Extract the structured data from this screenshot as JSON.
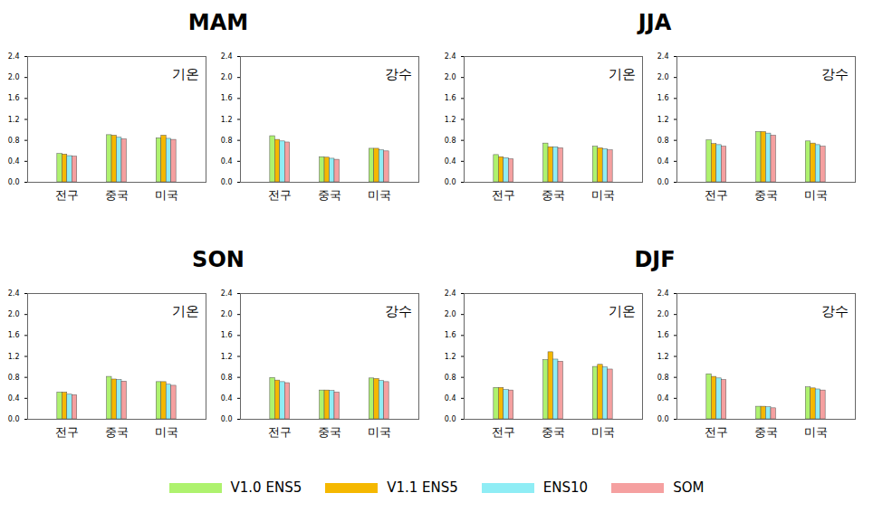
{
  "chart_data": [
    {
      "type": "bar",
      "title": "MAM",
      "grid": false,
      "legend": "bottom",
      "panels": [
        {
          "annotation": "기온",
          "categories": [
            "전구",
            "중국",
            "미국"
          ],
          "ylim": [
            0,
            2.4
          ],
          "yticks": [
            {
              "value": 0,
              "label": "0.0"
            },
            0.4,
            0.8,
            1.2,
            1.6,
            {
              "value": 2,
              "label": "2.0"
            },
            2.4
          ],
          "series": [
            {
              "name": "V1.0 ENS5",
              "color": "#aef26e",
              "values": [
                0.54,
                0.9,
                0.84
              ]
            },
            {
              "name": "V1.1 ENS5",
              "color": "#f5b800",
              "values": [
                0.53,
                0.89,
                0.89
              ]
            },
            {
              "name": "ENS10",
              "color": "#8fedf5",
              "values": [
                0.5,
                0.85,
                0.83
              ]
            },
            {
              "name": "SOM",
              "color": "#f5a0a0",
              "values": [
                0.49,
                0.82,
                0.81
              ]
            }
          ]
        },
        {
          "annotation": "강수",
          "categories": [
            "전구",
            "중국",
            "미국"
          ],
          "ylim": [
            0,
            2.4
          ],
          "yticks": [
            {
              "value": 0,
              "label": "0.0"
            },
            0.4,
            0.8,
            1.2,
            1.6,
            {
              "value": 2,
              "label": "2.0"
            },
            2.4
          ],
          "series": [
            {
              "name": "V1.0 ENS5",
              "color": "#aef26e",
              "values": [
                0.88,
                0.48,
                0.64
              ]
            },
            {
              "name": "V1.1 ENS5",
              "color": "#f5b800",
              "values": [
                0.81,
                0.47,
                0.64
              ]
            },
            {
              "name": "ENS10",
              "color": "#8fedf5",
              "values": [
                0.78,
                0.45,
                0.61
              ]
            },
            {
              "name": "SOM",
              "color": "#f5a0a0",
              "values": [
                0.76,
                0.43,
                0.59
              ]
            }
          ]
        }
      ]
    },
    {
      "type": "bar",
      "title": "JJA",
      "grid": false,
      "legend": "bottom",
      "panels": [
        {
          "annotation": "기온",
          "categories": [
            "전구",
            "중국",
            "미국"
          ],
          "ylim": [
            0,
            2.4
          ],
          "yticks": [
            {
              "value": 0,
              "label": "0.0"
            },
            0.4,
            0.8,
            1.2,
            1.6,
            {
              "value": 2,
              "label": "2.0"
            },
            2.4
          ],
          "series": [
            {
              "name": "V1.0 ENS5",
              "color": "#aef26e",
              "values": [
                0.52,
                0.74,
                0.68
              ]
            },
            {
              "name": "V1.1 ENS5",
              "color": "#f5b800",
              "values": [
                0.48,
                0.67,
                0.65
              ]
            },
            {
              "name": "ENS10",
              "color": "#8fedf5",
              "values": [
                0.46,
                0.67,
                0.63
              ]
            },
            {
              "name": "SOM",
              "color": "#f5a0a0",
              "values": [
                0.44,
                0.65,
                0.61
              ]
            }
          ]
        },
        {
          "annotation": "강수",
          "categories": [
            "전구",
            "중국",
            "미국"
          ],
          "ylim": [
            0,
            2.4
          ],
          "yticks": [
            {
              "value": 0,
              "label": "0.0"
            },
            0.4,
            0.8,
            1.2,
            1.6,
            {
              "value": 2,
              "label": "2.0"
            },
            2.4
          ],
          "series": [
            {
              "name": "V1.0 ENS5",
              "color": "#aef26e",
              "values": [
                0.8,
                0.96,
                0.78
              ]
            },
            {
              "name": "V1.1 ENS5",
              "color": "#f5b800",
              "values": [
                0.73,
                0.96,
                0.74
              ]
            },
            {
              "name": "ENS10",
              "color": "#8fedf5",
              "values": [
                0.71,
                0.93,
                0.71
              ]
            },
            {
              "name": "SOM",
              "color": "#f5a0a0",
              "values": [
                0.68,
                0.89,
                0.68
              ]
            }
          ]
        }
      ]
    },
    {
      "type": "bar",
      "title": "SON",
      "grid": false,
      "legend": "bottom",
      "panels": [
        {
          "annotation": "기온",
          "categories": [
            "전구",
            "중국",
            "미국"
          ],
          "ylim": [
            0,
            2.4
          ],
          "yticks": [
            {
              "value": 0,
              "label": "0.0"
            },
            0.4,
            0.8,
            1.2,
            1.6,
            {
              "value": 2,
              "label": "2.0"
            },
            2.4
          ],
          "series": [
            {
              "name": "V1.0 ENS5",
              "color": "#aef26e",
              "values": [
                0.51,
                0.81,
                0.71
              ]
            },
            {
              "name": "V1.1 ENS5",
              "color": "#f5b800",
              "values": [
                0.51,
                0.76,
                0.71
              ]
            },
            {
              "name": "ENS10",
              "color": "#8fedf5",
              "values": [
                0.47,
                0.75,
                0.66
              ]
            },
            {
              "name": "SOM",
              "color": "#f5a0a0",
              "values": [
                0.46,
                0.72,
                0.64
              ]
            }
          ]
        },
        {
          "annotation": "강수",
          "categories": [
            "전구",
            "중국",
            "미국"
          ],
          "ylim": [
            0,
            2.4
          ],
          "yticks": [
            {
              "value": 0,
              "label": "0.0"
            },
            0.4,
            0.8,
            1.2,
            1.6,
            {
              "value": 2,
              "label": "2.0"
            },
            2.4
          ],
          "series": [
            {
              "name": "V1.0 ENS5",
              "color": "#aef26e",
              "values": [
                0.79,
                0.55,
                0.78
              ]
            },
            {
              "name": "V1.1 ENS5",
              "color": "#f5b800",
              "values": [
                0.74,
                0.55,
                0.77
              ]
            },
            {
              "name": "ENS10",
              "color": "#8fedf5",
              "values": [
                0.71,
                0.54,
                0.73
              ]
            },
            {
              "name": "SOM",
              "color": "#f5a0a0",
              "values": [
                0.69,
                0.51,
                0.71
              ]
            }
          ]
        }
      ]
    },
    {
      "type": "bar",
      "title": "DJF",
      "grid": false,
      "legend": "bottom",
      "panels": [
        {
          "annotation": "기온",
          "categories": [
            "전구",
            "중국",
            "미국"
          ],
          "ylim": [
            0,
            2.4
          ],
          "yticks": [
            {
              "value": 0,
              "label": "0.0"
            },
            0.4,
            0.8,
            1.2,
            1.6,
            {
              "value": 2,
              "label": "2.0"
            },
            2.4
          ],
          "series": [
            {
              "name": "V1.0 ENS5",
              "color": "#aef26e",
              "values": [
                0.6,
                1.13,
                1.0
              ]
            },
            {
              "name": "V1.1 ENS5",
              "color": "#f5b800",
              "values": [
                0.6,
                1.28,
                1.04
              ]
            },
            {
              "name": "ENS10",
              "color": "#8fedf5",
              "values": [
                0.56,
                1.14,
                0.99
              ]
            },
            {
              "name": "SOM",
              "color": "#f5a0a0",
              "values": [
                0.55,
                1.1,
                0.95
              ]
            }
          ]
        },
        {
          "annotation": "강수",
          "categories": [
            "전구",
            "중국",
            "미국"
          ],
          "ylim": [
            0,
            2.4
          ],
          "yticks": [
            {
              "value": 0,
              "label": "0.0"
            },
            0.4,
            0.8,
            1.2,
            1.6,
            {
              "value": 2,
              "label": "2.0"
            },
            2.4
          ],
          "series": [
            {
              "name": "V1.0 ENS5",
              "color": "#aef26e",
              "values": [
                0.86,
                0.24,
                0.61
              ]
            },
            {
              "name": "V1.1 ENS5",
              "color": "#f5b800",
              "values": [
                0.81,
                0.24,
                0.59
              ]
            },
            {
              "name": "ENS10",
              "color": "#8fedf5",
              "values": [
                0.78,
                0.23,
                0.57
              ]
            },
            {
              "name": "SOM",
              "color": "#f5a0a0",
              "values": [
                0.75,
                0.21,
                0.55
              ]
            }
          ]
        }
      ]
    }
  ]
}
